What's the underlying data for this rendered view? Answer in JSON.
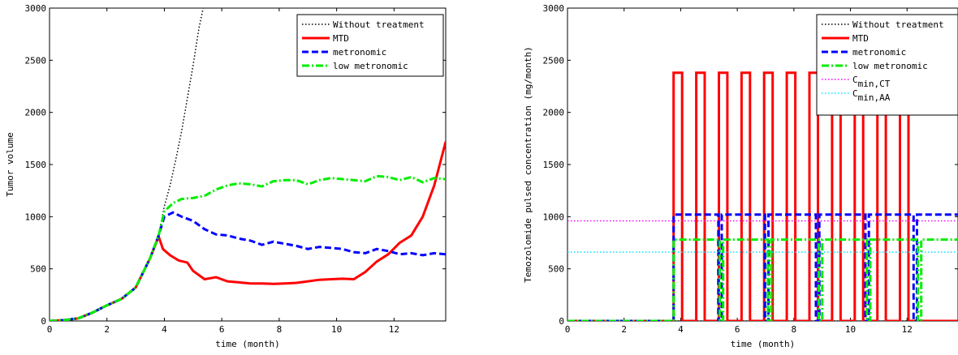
{
  "chart_data": [
    {
      "type": "line",
      "xlabel": "time (month)",
      "ylabel": "Tumor volume",
      "xlim": [
        0,
        13.8
      ],
      "ylim": [
        0,
        3000
      ],
      "xticks": [
        0,
        2,
        4,
        6,
        8,
        10,
        12
      ],
      "yticks": [
        0,
        500,
        1000,
        1500,
        2000,
        2500,
        3000
      ],
      "legend_position": "top-right",
      "series": [
        {
          "name": "Without treatment",
          "color": "#000000",
          "dash": "dotted",
          "x": [
            0,
            0.5,
            1,
            1.5,
            2,
            2.5,
            3,
            3.5,
            3.8,
            4.0,
            4.2,
            4.4,
            4.6,
            4.8,
            5.0,
            5.2,
            5.35
          ],
          "y": [
            0,
            8,
            25,
            80,
            150,
            210,
            320,
            600,
            820,
            1100,
            1300,
            1550,
            1820,
            2130,
            2450,
            2800,
            3000
          ]
        },
        {
          "name": "MTD",
          "color": "#ff0000",
          "dash": "solid",
          "x": [
            0,
            0.5,
            1,
            1.5,
            2,
            2.5,
            3,
            3.5,
            3.8,
            3.95,
            4.2,
            4.5,
            4.8,
            5.0,
            5.4,
            5.8,
            6.2,
            6.6,
            7.0,
            7.4,
            7.8,
            8.2,
            8.6,
            9.0,
            9.4,
            9.8,
            10.2,
            10.6,
            11.0,
            11.4,
            11.8,
            12.2,
            12.6,
            13.0,
            13.4,
            13.8
          ],
          "y": [
            0,
            8,
            25,
            80,
            150,
            210,
            320,
            600,
            810,
            690,
            630,
            580,
            560,
            480,
            400,
            420,
            380,
            370,
            360,
            360,
            355,
            360,
            365,
            380,
            395,
            400,
            405,
            400,
            470,
            570,
            640,
            750,
            820,
            1000,
            1300,
            1720
          ]
        },
        {
          "name": "metronomic",
          "color": "#0000ff",
          "dash": "dashed",
          "x": [
            0,
            0.5,
            1,
            1.5,
            2,
            2.5,
            3,
            3.5,
            3.8,
            4.0,
            4.3,
            4.6,
            5.0,
            5.4,
            5.8,
            6.2,
            6.6,
            7.0,
            7.4,
            7.8,
            8.2,
            8.6,
            9.0,
            9.4,
            9.8,
            10.2,
            10.6,
            11.0,
            11.4,
            11.8,
            12.2,
            12.6,
            13.0,
            13.4,
            13.8
          ],
          "y": [
            0,
            8,
            25,
            80,
            150,
            210,
            320,
            600,
            820,
            1000,
            1040,
            1000,
            960,
            880,
            830,
            820,
            790,
            770,
            730,
            760,
            740,
            720,
            690,
            710,
            700,
            690,
            660,
            650,
            690,
            670,
            640,
            650,
            630,
            650,
            640
          ]
        },
        {
          "name": "low metronomic",
          "color": "#00ee00",
          "dash": "dashdot",
          "x": [
            0,
            0.5,
            1,
            1.5,
            2,
            2.5,
            3,
            3.5,
            3.8,
            4.0,
            4.3,
            4.6,
            5.0,
            5.4,
            5.8,
            6.2,
            6.6,
            7.0,
            7.4,
            7.8,
            8.2,
            8.6,
            9.0,
            9.4,
            9.8,
            10.2,
            10.6,
            11.0,
            11.4,
            11.8,
            12.2,
            12.6,
            13.0,
            13.4,
            13.8
          ],
          "y": [
            0,
            8,
            25,
            80,
            150,
            210,
            320,
            600,
            820,
            1050,
            1130,
            1170,
            1180,
            1200,
            1260,
            1300,
            1320,
            1310,
            1290,
            1340,
            1350,
            1350,
            1310,
            1350,
            1370,
            1360,
            1350,
            1340,
            1390,
            1380,
            1350,
            1380,
            1330,
            1370,
            1360
          ]
        }
      ]
    },
    {
      "type": "line",
      "xlabel": "time (month)",
      "ylabel": "Temozolomide pulsed concentration (mg/month)",
      "xlim": [
        0,
        13.8
      ],
      "ylim": [
        0,
        3000
      ],
      "xticks": [
        0,
        2,
        4,
        6,
        8,
        10,
        12
      ],
      "yticks": [
        0,
        500,
        1000,
        1500,
        2000,
        2500,
        3000
      ],
      "legend_position": "top-right",
      "series": [
        {
          "name": "Without treatment",
          "color": "#000000",
          "dash": "dotted",
          "x": [
            0,
            13.8
          ],
          "y": [
            0,
            0
          ]
        },
        {
          "name": "MTD",
          "color": "#ff0000",
          "dash": "solid",
          "pulse_starts": [
            3.75,
            4.55,
            5.35,
            6.15,
            6.95,
            7.75,
            8.55,
            9.35,
            10.15,
            10.95,
            11.75
          ],
          "pulse_width": 0.3,
          "level": 2380
        },
        {
          "name": "metronomic",
          "color": "#0000ff",
          "dash": "dashed",
          "pulse_starts": [
            3.75,
            5.45,
            7.1,
            8.9,
            10.65,
            12.35
          ],
          "gaps": [
            0.1,
            0.1,
            0.1,
            0.1,
            0.1,
            0.1
          ],
          "level": 1020
        },
        {
          "name": "low metronomic",
          "color": "#00ee00",
          "dash": "dashdot",
          "pulse_starts": [
            3.75,
            5.5,
            7.2,
            9.0,
            10.7,
            12.5
          ],
          "level": 780
        },
        {
          "name_main": "C",
          "name_sub": "min,CT",
          "color": "#ff00ff",
          "dash": "dotted",
          "x": [
            0,
            13.8
          ],
          "y": [
            960,
            960
          ]
        },
        {
          "name_main": "C",
          "name_sub": "min,AA",
          "color": "#00e5ff",
          "dash": "dotted",
          "x": [
            0,
            13.8
          ],
          "y": [
            660,
            660
          ]
        }
      ]
    }
  ]
}
